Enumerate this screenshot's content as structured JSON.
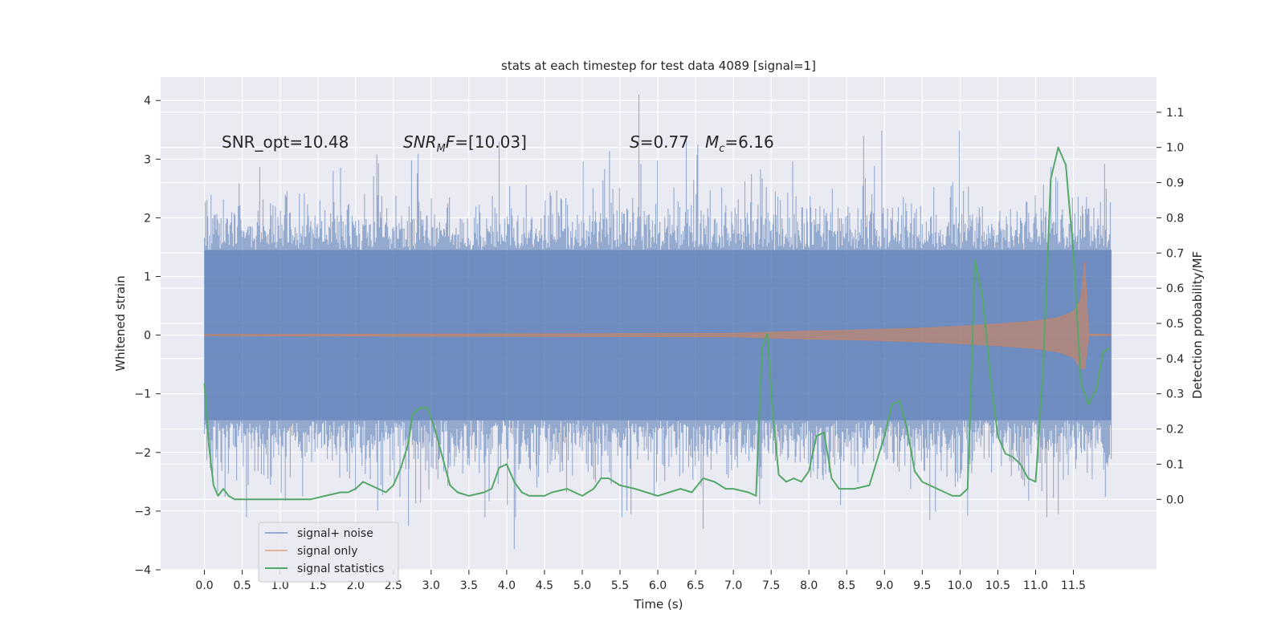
{
  "chart_data": {
    "type": "line",
    "title": "stats at each timestep for test data 4089 [signal=1]",
    "xlabel": "Time (s)",
    "ylabel": "Whitened strain",
    "y2label": "Detection probability/MF",
    "xlim": [
      -0.58,
      12.6
    ],
    "ylim": [
      -4,
      4.4
    ],
    "y2lim": [
      -0.2,
      1.2
    ],
    "x_ticks": [
      0.0,
      0.5,
      1.0,
      1.5,
      2.0,
      2.5,
      3.0,
      3.5,
      4.0,
      4.5,
      5.0,
      5.5,
      6.0,
      6.5,
      7.0,
      7.5,
      8.0,
      8.5,
      9.0,
      9.5,
      10.0,
      10.5,
      11.0,
      11.5
    ],
    "x_tick_labels": [
      "0.0",
      "0.5",
      "1.0",
      "1.5",
      "2.0",
      "2.5",
      "3.0",
      "3.5",
      "4.0",
      "4.5",
      "5.0",
      "5.5",
      "6.0",
      "6.5",
      "7.0",
      "7.5",
      "8.0",
      "8.5",
      "9.0",
      "9.5",
      "10.0",
      "10.5",
      "11.0",
      "11.5"
    ],
    "y_ticks": [
      4,
      3,
      2,
      1,
      0,
      -1,
      -2,
      -3,
      -4
    ],
    "y_tick_labels": [
      "4",
      "3",
      "2",
      "1",
      "0",
      "−1",
      "−2",
      "−3",
      "−4"
    ],
    "y2_ticks": [
      1.1,
      1.0,
      0.9,
      0.8,
      0.7,
      0.6,
      0.5,
      0.4,
      0.3,
      0.2,
      0.1,
      0.0
    ],
    "y2_tick_labels": [
      "1.1",
      "1.0",
      "0.9",
      "0.8",
      "0.7",
      "0.6",
      "0.5",
      "0.4",
      "0.3",
      "0.2",
      "0.1",
      "0.0"
    ],
    "grid": true,
    "legend_position": "lower-left",
    "series": [
      {
        "name": "signal+ noise",
        "color": "#4c72b0",
        "axis": "left",
        "x_range": [
          0.0,
          12.0
        ],
        "typical_amplitude": 1.45,
        "peak_max": 4.1,
        "peak_min": -3.65
      },
      {
        "name": "signal only",
        "color": "#dd8452",
        "axis": "left",
        "x_range": [
          0.0,
          12.0
        ],
        "envelope_x": [
          0.0,
          7.0,
          7.5,
          8.0,
          8.5,
          9.0,
          9.5,
          10.0,
          10.5,
          11.0,
          11.3,
          11.5,
          11.6,
          11.65,
          11.7,
          12.0
        ],
        "envelope_amp": [
          0.01,
          0.03,
          0.05,
          0.07,
          0.08,
          0.1,
          0.12,
          0.15,
          0.19,
          0.24,
          0.3,
          0.4,
          0.6,
          1.25,
          0.02,
          0.01
        ]
      },
      {
        "name": "signal statistics",
        "color": "#55a868",
        "axis": "right",
        "x": [
          0.0,
          0.06,
          0.12,
          0.18,
          0.25,
          0.32,
          0.4,
          0.5,
          0.6,
          0.7,
          0.8,
          0.9,
          1.0,
          1.2,
          1.4,
          1.6,
          1.8,
          1.9,
          2.0,
          2.1,
          2.2,
          2.3,
          2.4,
          2.5,
          2.6,
          2.7,
          2.75,
          2.85,
          2.95,
          3.05,
          3.15,
          3.25,
          3.35,
          3.5,
          3.7,
          3.8,
          3.9,
          4.0,
          4.1,
          4.2,
          4.3,
          4.5,
          4.6,
          4.8,
          5.0,
          5.15,
          5.25,
          5.35,
          5.5,
          5.7,
          5.85,
          6.0,
          6.15,
          6.3,
          6.45,
          6.6,
          6.75,
          6.9,
          7.0,
          7.2,
          7.3,
          7.38,
          7.45,
          7.52,
          7.6,
          7.7,
          7.8,
          7.9,
          8.0,
          8.1,
          8.2,
          8.3,
          8.4,
          8.6,
          8.8,
          9.0,
          9.1,
          9.2,
          9.3,
          9.4,
          9.5,
          9.7,
          9.9,
          10.0,
          10.1,
          10.2,
          10.3,
          10.4,
          10.5,
          10.6,
          10.7,
          10.8,
          10.9,
          11.0,
          11.1,
          11.2,
          11.3,
          11.4,
          11.5,
          11.6,
          11.7,
          11.8,
          11.9,
          11.98
        ],
        "values": [
          0.33,
          0.15,
          0.04,
          0.01,
          0.03,
          0.01,
          0.0,
          0.0,
          0.0,
          0.0,
          0.0,
          0.0,
          0.0,
          0.0,
          0.0,
          0.01,
          0.02,
          0.02,
          0.03,
          0.05,
          0.04,
          0.03,
          0.02,
          0.04,
          0.09,
          0.16,
          0.24,
          0.26,
          0.26,
          0.2,
          0.12,
          0.04,
          0.02,
          0.01,
          0.02,
          0.03,
          0.09,
          0.1,
          0.05,
          0.02,
          0.01,
          0.01,
          0.02,
          0.03,
          0.01,
          0.03,
          0.06,
          0.06,
          0.04,
          0.03,
          0.02,
          0.01,
          0.02,
          0.03,
          0.02,
          0.06,
          0.05,
          0.03,
          0.03,
          0.02,
          0.01,
          0.43,
          0.47,
          0.25,
          0.07,
          0.05,
          0.06,
          0.05,
          0.08,
          0.18,
          0.19,
          0.06,
          0.03,
          0.03,
          0.04,
          0.18,
          0.27,
          0.28,
          0.2,
          0.08,
          0.05,
          0.03,
          0.01,
          0.01,
          0.03,
          0.68,
          0.57,
          0.35,
          0.18,
          0.13,
          0.12,
          0.1,
          0.06,
          0.05,
          0.37,
          0.91,
          1.0,
          0.95,
          0.7,
          0.33,
          0.27,
          0.31,
          0.42,
          0.43
        ]
      }
    ],
    "annotations": [
      {
        "label": "SNR_opt=10.48"
      },
      {
        "label": "SNR_MF=[10.03]"
      },
      {
        "label": "S=0.77"
      },
      {
        "label": "Mc=6.16"
      }
    ],
    "legend": {
      "entries": [
        {
          "label": "signal+ noise",
          "color": "#4c72b0"
        },
        {
          "label": "signal only",
          "color": "#dd8452"
        },
        {
          "label": "signal statistics",
          "color": "#55a868"
        }
      ]
    }
  }
}
